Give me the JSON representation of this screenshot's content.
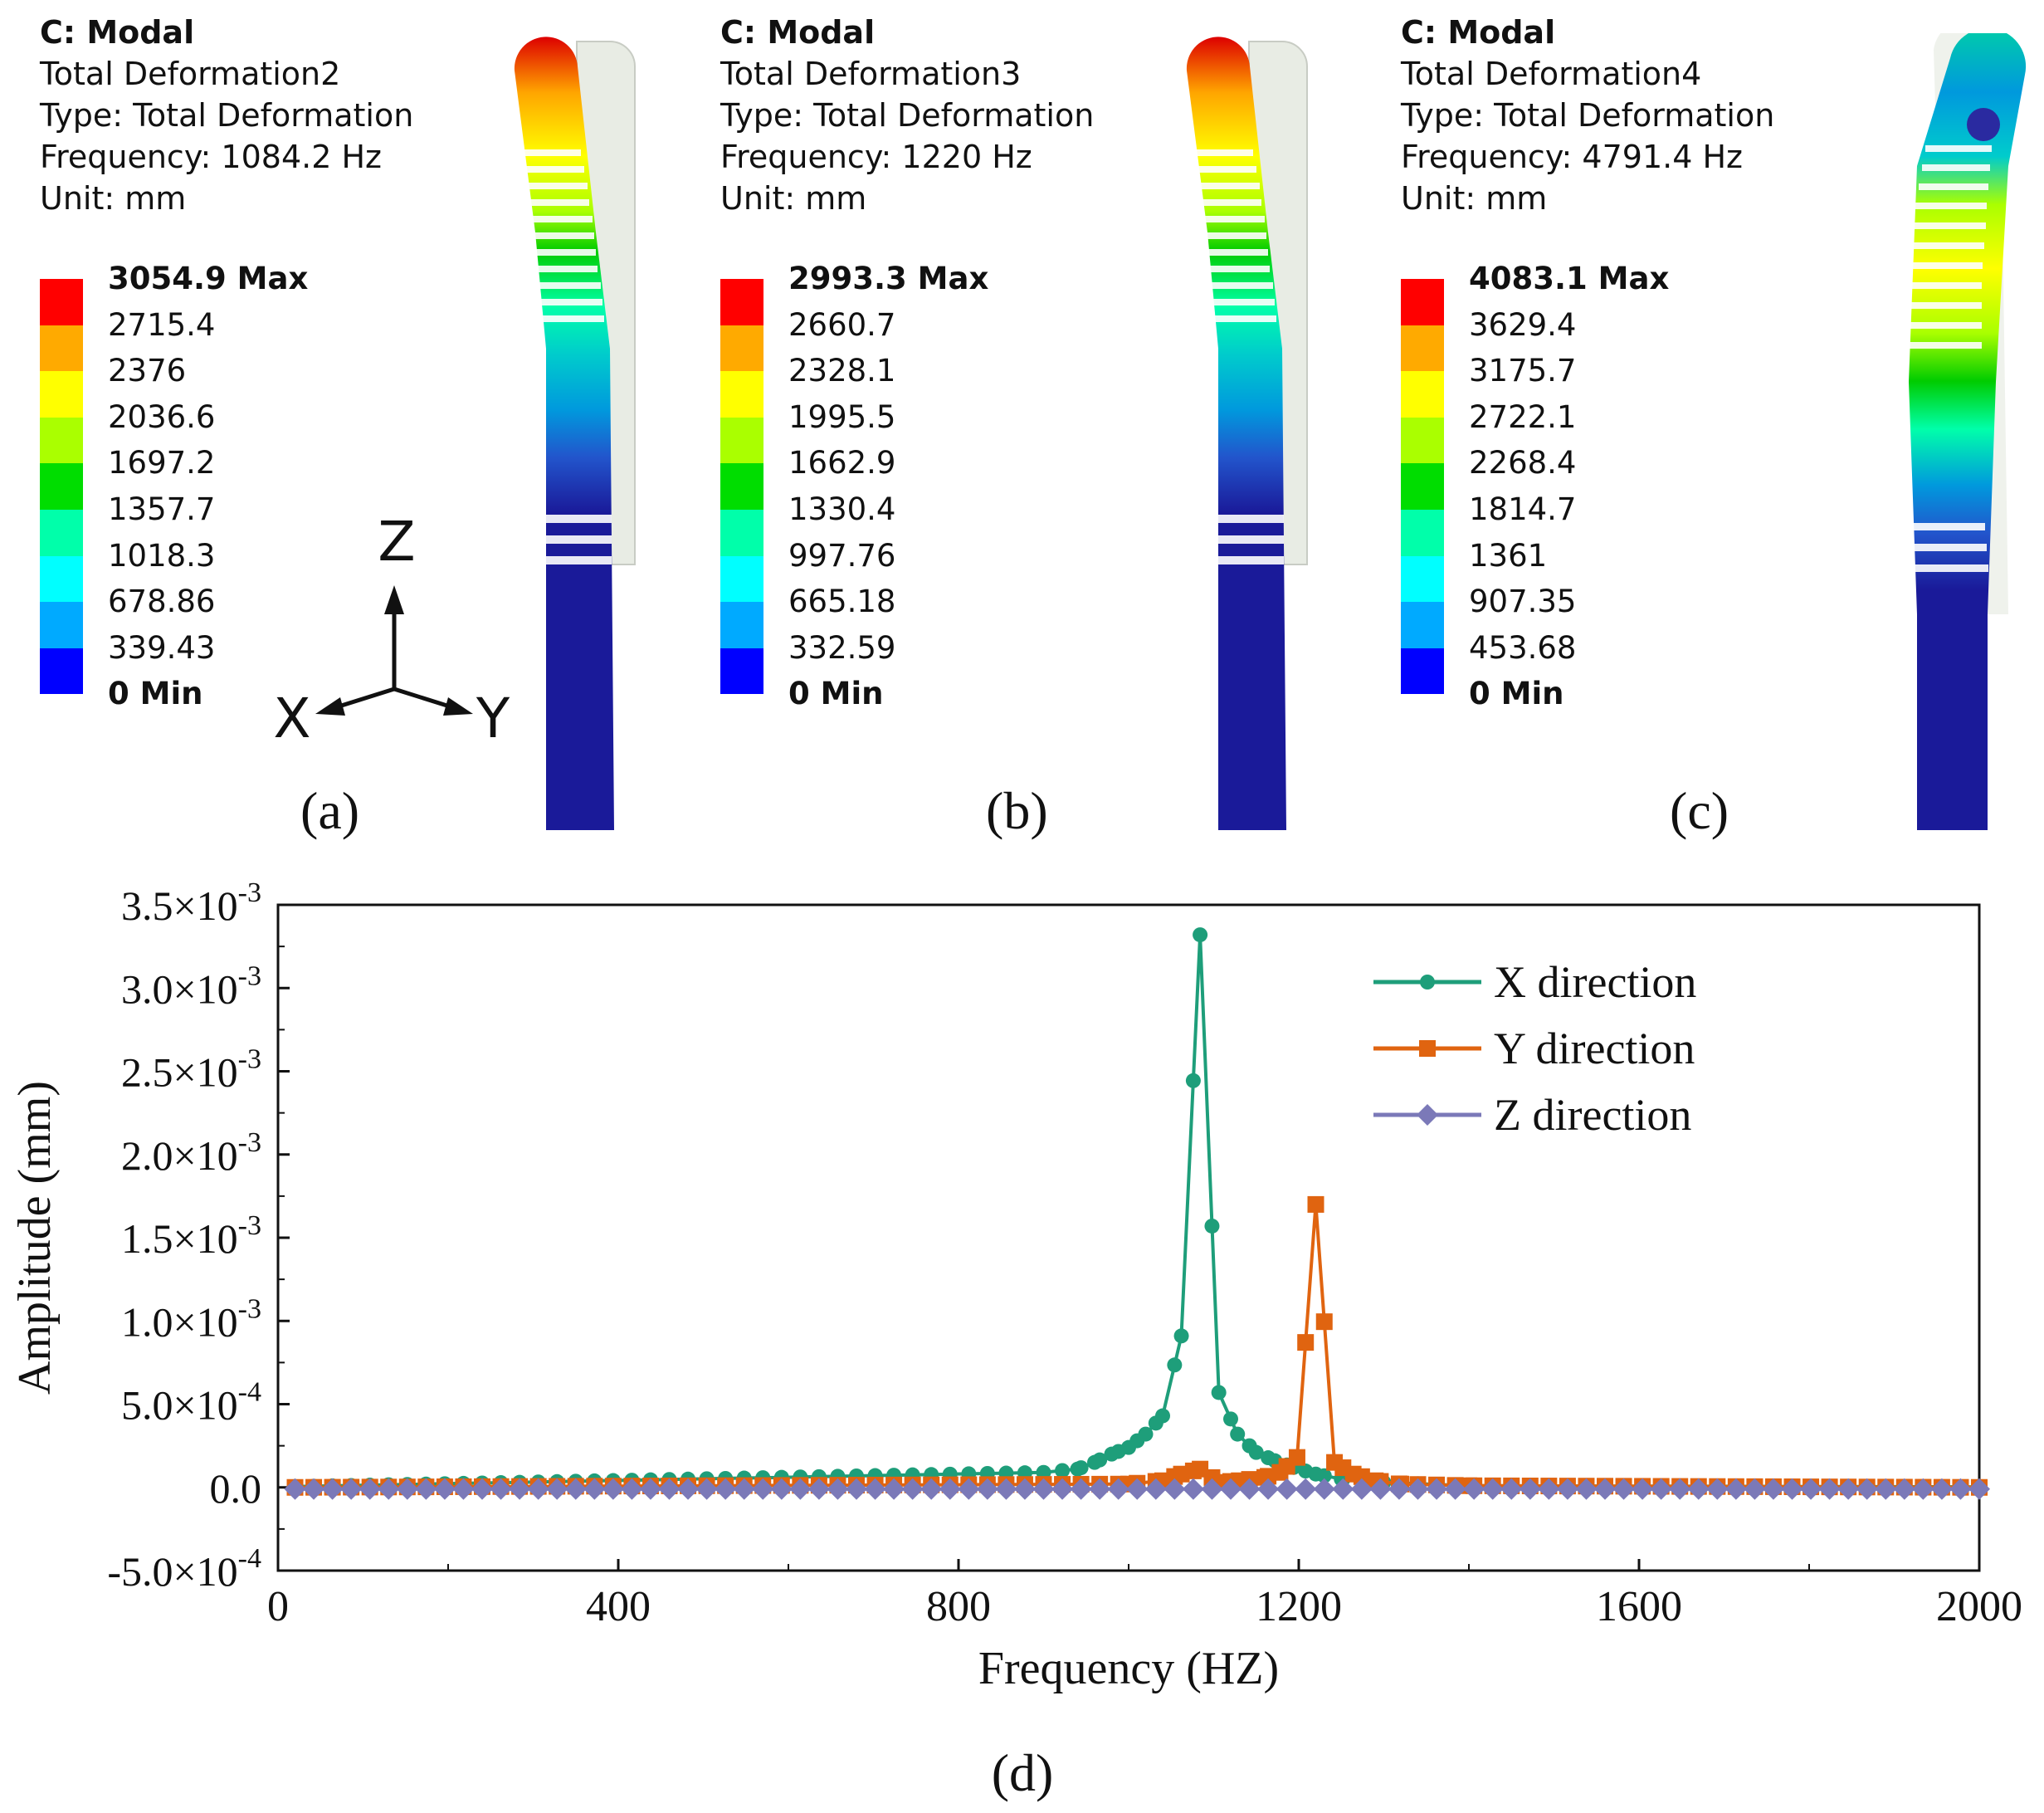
{
  "panels": [
    {
      "id": "a",
      "header": "C: Modal",
      "name": "Total Deformation2",
      "type": "Type: Total Deformation",
      "frequency": "Frequency: 1084.2 Hz",
      "unit": "Unit: mm",
      "legend": [
        "3054.9 Max",
        "2715.4",
        "2376",
        "2036.6",
        "1697.2",
        "1357.7",
        "1018.3",
        "678.86",
        "339.43",
        "0 Min"
      ],
      "subfig": "(a)"
    },
    {
      "id": "b",
      "header": "C: Modal",
      "name": "Total Deformation3",
      "type": "Type: Total Deformation",
      "frequency": "Frequency: 1220  Hz",
      "unit": "Unit: mm",
      "legend": [
        "2993.3 Max",
        "2660.7",
        "2328.1",
        "1995.5",
        "1662.9",
        "1330.4",
        "997.76",
        "665.18",
        "332.59",
        "0 Min"
      ],
      "subfig": "(b)"
    },
    {
      "id": "c",
      "header": "C: Modal",
      "name": "Total Deformation4",
      "type": "Type: Total Deformation",
      "frequency": "Frequency: 4791.4 Hz",
      "unit": "Unit: mm",
      "legend": [
        "4083.1 Max",
        "3629.4",
        "3175.7",
        "2722.1",
        "2268.4",
        "1814.7",
        "1361",
        "907.35",
        "453.68",
        "0 Min"
      ],
      "subfig": "(c)"
    }
  ],
  "axes_triad": {
    "z": "Z",
    "x": "X",
    "y": "Y"
  },
  "colors": {
    "legend_scale": [
      "#ff0000",
      "#ffaa00",
      "#ffff00",
      "#aaff00",
      "#00dd00",
      "#00ffaa",
      "#00ffff",
      "#00aaff",
      "#0000ff"
    ],
    "x_series": "#1e9e7a",
    "y_series": "#e06410",
    "z_series": "#7b79b8"
  },
  "chart_data": {
    "type": "line",
    "xlabel": "Frequency (HZ)",
    "ylabel": "Amplitude (mm)",
    "xlim": [
      0,
      2000
    ],
    "ylim": [
      -0.0005,
      0.0035
    ],
    "xticks": [
      "0",
      "400",
      "800",
      "1200",
      "1600",
      "2000"
    ],
    "ytick_values": [
      -0.0005,
      0,
      0.0005,
      0.001,
      0.0015,
      0.002,
      0.0025,
      0.003,
      0.0035
    ],
    "yticks": [
      {
        "mant": "-5.0×10",
        "exp": "-4"
      },
      {
        "mant": "0.0",
        "exp": ""
      },
      {
        "mant": "5.0×10",
        "exp": "-4"
      },
      {
        "mant": "1.0×10",
        "exp": "-3"
      },
      {
        "mant": "1.5×10",
        "exp": "-3"
      },
      {
        "mant": "2.0×10",
        "exp": "-3"
      },
      {
        "mant": "2.5×10",
        "exp": "-3"
      },
      {
        "mant": "3.0×10",
        "exp": "-3"
      },
      {
        "mant": "3.5×10",
        "exp": "-3"
      }
    ],
    "subfig": "(d)",
    "series": [
      {
        "name": "X direction",
        "marker": "circle",
        "x": [
          20,
          900,
          940,
          960,
          980,
          1000,
          1020,
          1040,
          1062,
          1084,
          1106,
          1128,
          1150,
          1172,
          1194,
          1220,
          1250,
          1300,
          1400,
          2000
        ],
        "y": [
          5e-06,
          9e-05,
          0.00011,
          0.00015,
          0.0002,
          0.00024,
          0.00032,
          0.00043,
          0.00091,
          0.00332,
          0.00057,
          0.00032,
          0.00021,
          0.00016,
          0.00012,
          8e-05,
          5e-05,
          3e-05,
          1e-05,
          3e-06
        ]
      },
      {
        "name": "Y direction",
        "marker": "square",
        "x": [
          20,
          1000,
          1040,
          1062,
          1084,
          1106,
          1130,
          1160,
          1178,
          1198,
          1220,
          1242,
          1264,
          1290,
          1320,
          1400,
          2000
        ],
        "y": [
          0,
          2e-05,
          4e-05,
          8e-05,
          0.00011,
          3e-05,
          4e-05,
          6e-05,
          9e-05,
          0.00018,
          0.0017,
          0.00015,
          8e-05,
          4e-05,
          2e-05,
          1e-05,
          0
        ]
      },
      {
        "name": "Z direction",
        "marker": "diamond",
        "x": [
          20,
          2000
        ],
        "y": [
          -1e-05,
          -1e-05
        ]
      }
    ]
  }
}
